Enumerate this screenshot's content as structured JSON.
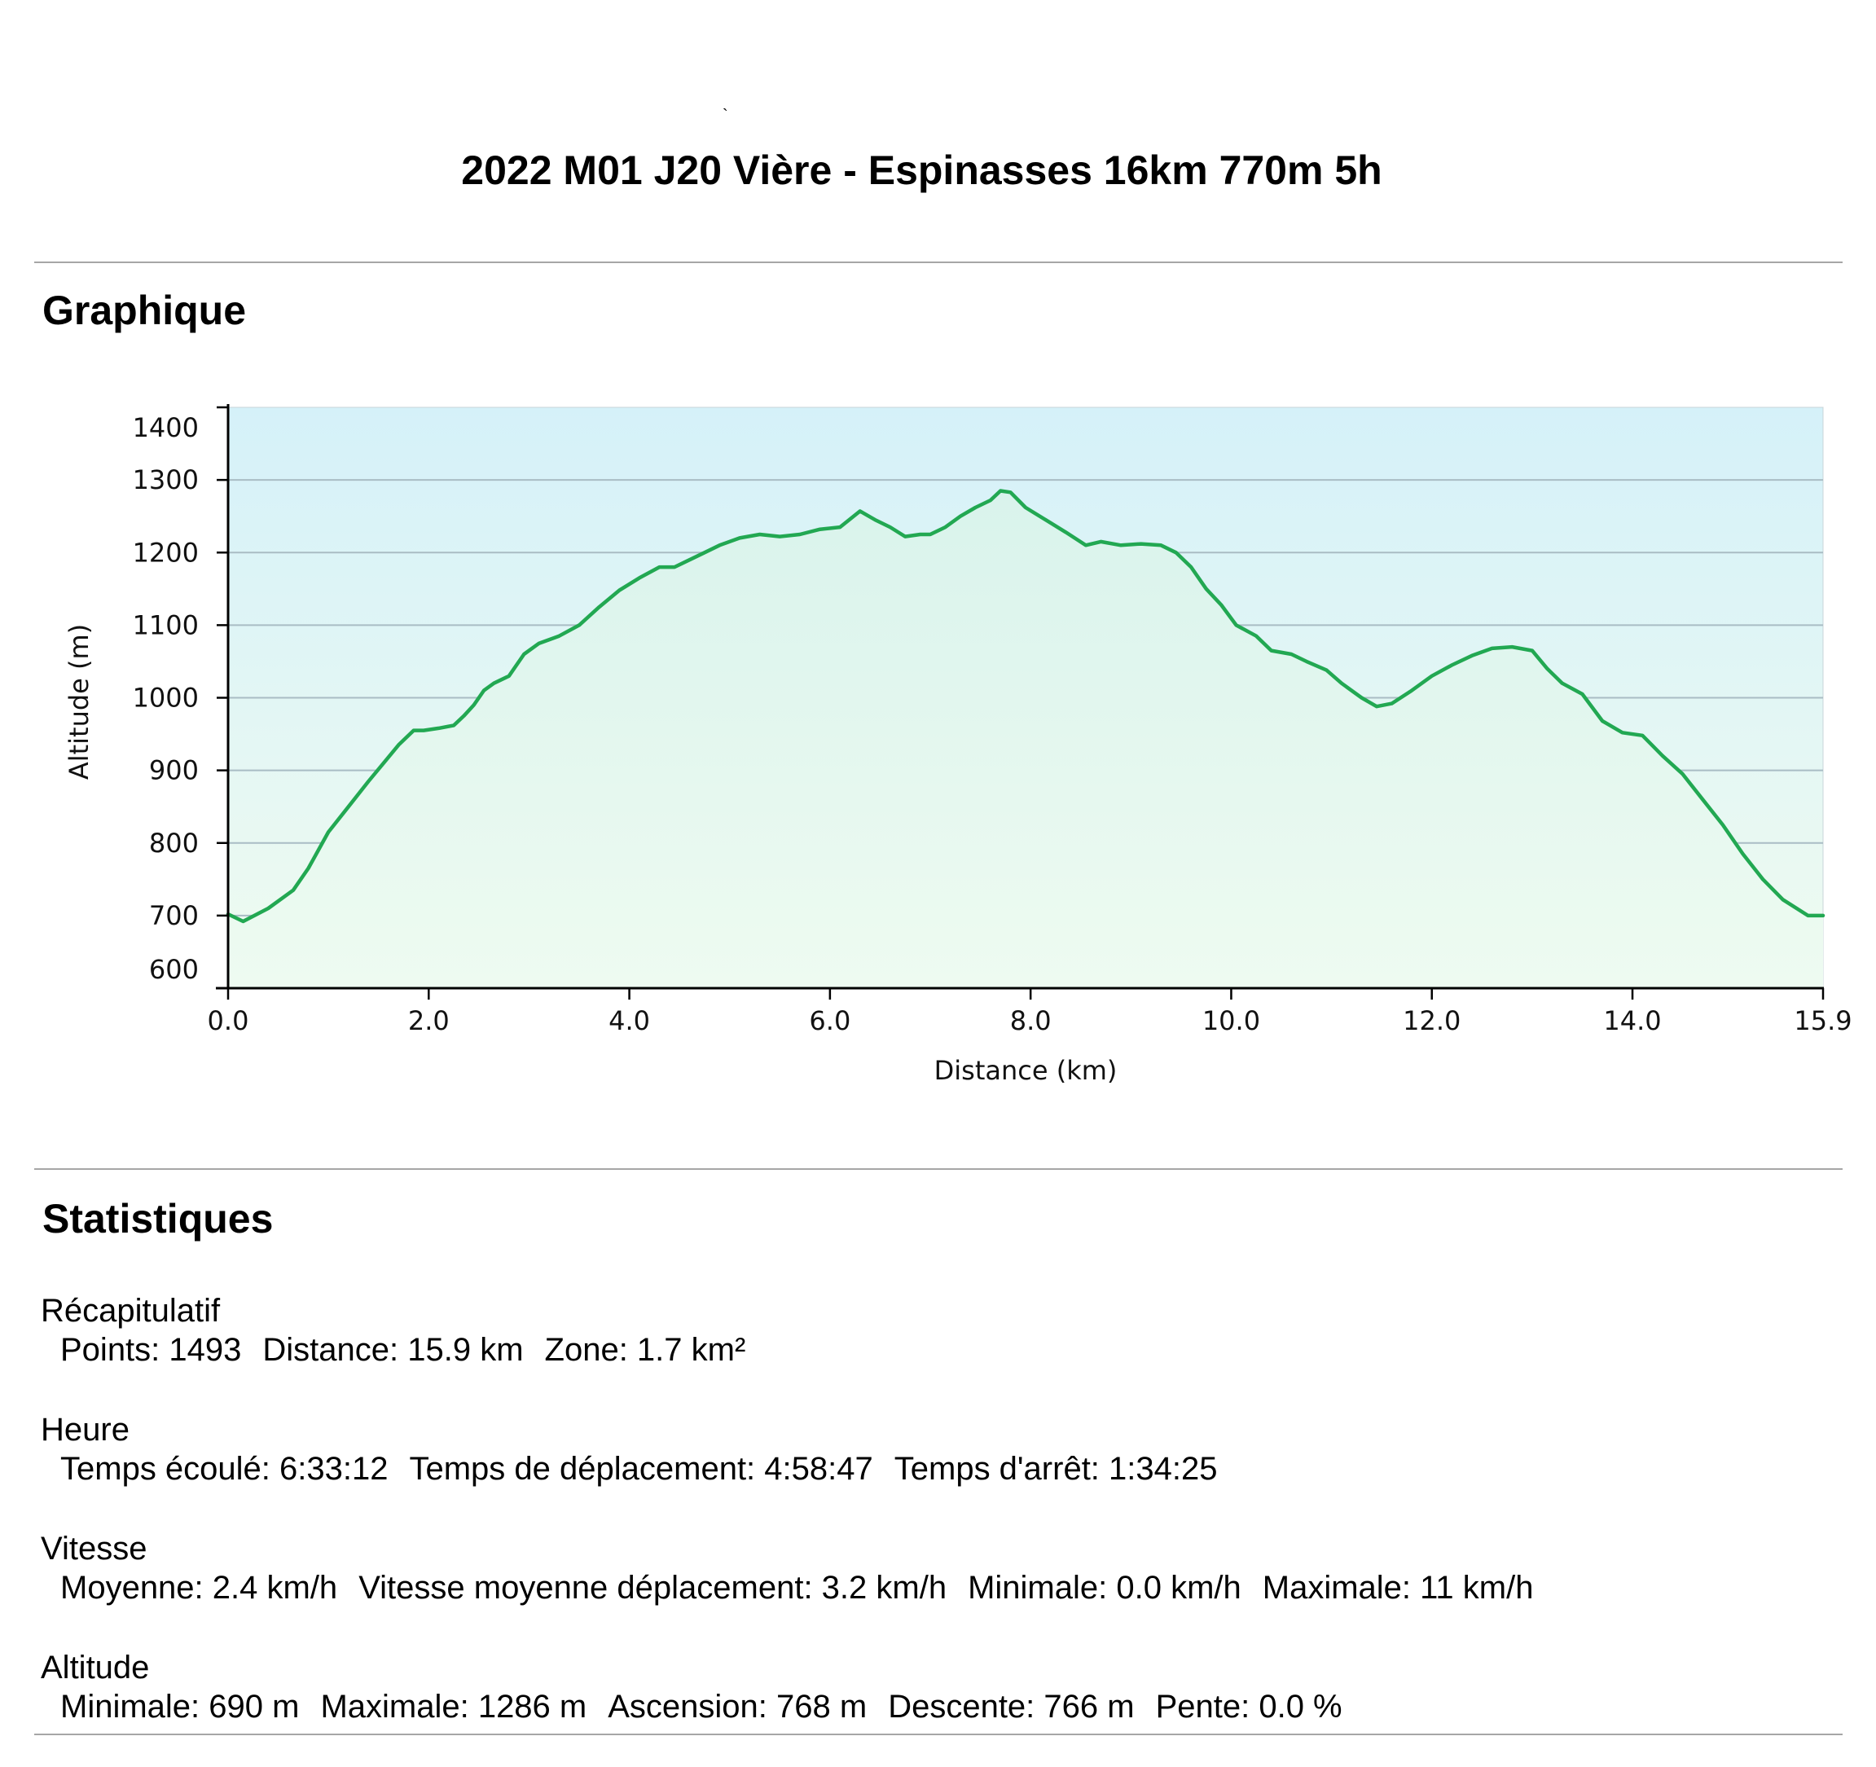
{
  "title": "2022 M01 J20 Vière - Espinasses 16km 770m 5h",
  "mark": "`",
  "sections": {
    "chart": "Graphique",
    "stats": "Statistiques"
  },
  "chart_data": {
    "type": "area",
    "title": "",
    "xlabel": "Distance   (km)",
    "ylabel": "Altitude (m)",
    "xlim": [
      0,
      15.9
    ],
    "ylim": [
      600,
      1400
    ],
    "xticks": [
      "0.0",
      "2.0",
      "4.0",
      "6.0",
      "8.0",
      "10.0",
      "12.0",
      "14.0",
      "15.9"
    ],
    "yticks": [
      "600",
      "700",
      "800",
      "900",
      "1000",
      "1100",
      "1200",
      "1300",
      "1400"
    ],
    "grid": true,
    "colors": {
      "line": "#22a852",
      "fill_top": "#d5f1f9",
      "fill_bottom": "#effbf0",
      "area_top": "#d9f3ec",
      "area_bottom": "#eefbf1",
      "grid": "#a9bcc4"
    },
    "series": [
      {
        "x": [
          0.0,
          0.15,
          0.4,
          0.65,
          0.8,
          1.0,
          1.2,
          1.4,
          1.55,
          1.7,
          1.85,
          1.95,
          2.1,
          2.25,
          2.35,
          2.45,
          2.55,
          2.65,
          2.8,
          2.95,
          3.1,
          3.3,
          3.5,
          3.7,
          3.9,
          4.1,
          4.3,
          4.45,
          4.6,
          4.75,
          4.9,
          5.1,
          5.3,
          5.5,
          5.7,
          5.9,
          6.1,
          6.3,
          6.45,
          6.6,
          6.75,
          6.9,
          7.0,
          7.15,
          7.3,
          7.45,
          7.6,
          7.7,
          7.8,
          7.95,
          8.15,
          8.35,
          8.55,
          8.7,
          8.9,
          9.1,
          9.3,
          9.45,
          9.6,
          9.75,
          9.9,
          10.05,
          10.25,
          10.4,
          10.6,
          10.75,
          10.95,
          11.1,
          11.3,
          11.45,
          11.6,
          11.8,
          12.0,
          12.2,
          12.4,
          12.6,
          12.8,
          13.0,
          13.15,
          13.3,
          13.5,
          13.7,
          13.9,
          14.1,
          14.3,
          14.5,
          14.7,
          14.9,
          15.1,
          15.3,
          15.5,
          15.75,
          15.9
        ],
        "y": [
          702,
          692,
          710,
          735,
          765,
          815,
          850,
          885,
          910,
          935,
          955,
          955,
          958,
          962,
          975,
          990,
          1010,
          1020,
          1030,
          1060,
          1075,
          1085,
          1100,
          1125,
          1148,
          1165,
          1180,
          1180,
          1190,
          1200,
          1210,
          1220,
          1225,
          1222,
          1225,
          1232,
          1235,
          1257,
          1245,
          1235,
          1222,
          1225,
          1225,
          1235,
          1250,
          1262,
          1272,
          1285,
          1283,
          1262,
          1245,
          1228,
          1210,
          1215,
          1210,
          1212,
          1210,
          1200,
          1180,
          1150,
          1128,
          1100,
          1085,
          1065,
          1060,
          1050,
          1038,
          1020,
          1000,
          988,
          992,
          1010,
          1030,
          1045,
          1058,
          1068,
          1070,
          1065,
          1040,
          1020,
          1005,
          968,
          952,
          948,
          920,
          895,
          860,
          825,
          785,
          750,
          722,
          700,
          700
        ]
      }
    ]
  },
  "stats": [
    {
      "title": "Récapitulatif",
      "items": [
        "Points: 1493",
        "Distance: 15.9 km",
        "Zone: 1.7 km²"
      ]
    },
    {
      "title": "Heure",
      "items": [
        "Temps écoulé: 6:33:12",
        "Temps de déplacement: 4:58:47",
        "Temps d'arrêt: 1:34:25"
      ]
    },
    {
      "title": "Vitesse",
      "items": [
        "Moyenne: 2.4 km/h",
        "Vitesse moyenne déplacement: 3.2 km/h",
        "Minimale: 0.0 km/h",
        "Maximale: 11 km/h"
      ]
    },
    {
      "title": "Altitude",
      "items": [
        "Minimale: 690 m",
        "Maximale: 1286 m",
        "Ascension: 768 m",
        "Descente: 766 m",
        "Pente: 0.0 %"
      ]
    }
  ]
}
